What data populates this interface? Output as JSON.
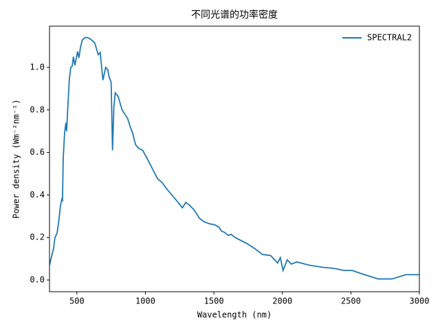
{
  "chart_data": {
    "type": "line",
    "title": "不同光谱的功率密度",
    "x_label": "Wavelength (nm)",
    "y_label": "Power density (Wm⁻²nm⁻¹)",
    "x": [
      300,
      330,
      340,
      355,
      365,
      370,
      380,
      390,
      395,
      400,
      410,
      420,
      425,
      435,
      445,
      455,
      465,
      475,
      485,
      495,
      505,
      515,
      525,
      540,
      560,
      580,
      605,
      630,
      656,
      670,
      690,
      710,
      725,
      735,
      750,
      760,
      770,
      780,
      800,
      830,
      850,
      870,
      890,
      910,
      920,
      930,
      950,
      980,
      1010,
      1050,
      1090,
      1120,
      1160,
      1200,
      1245,
      1270,
      1295,
      1325,
      1355,
      1395,
      1425,
      1445,
      1465,
      1505,
      1535,
      1555,
      1575,
      1595,
      1605,
      1625,
      1655,
      1745,
      1805,
      1855,
      1915,
      1965,
      1985,
      2005,
      2035,
      2065,
      2105,
      2195,
      2295,
      2375,
      2450,
      2510,
      2600,
      2700,
      2800,
      2900,
      3000
    ],
    "series": [
      {
        "name": "SPECTRAL2",
        "color": "#1f77b4",
        "values": [
          0.07,
          0.15,
          0.2,
          0.22,
          0.265,
          0.29,
          0.35,
          0.38,
          0.375,
          0.57,
          0.69,
          0.74,
          0.7,
          0.83,
          0.945,
          1.0,
          1.005,
          1.05,
          1.01,
          1.04,
          1.075,
          1.045,
          1.09,
          1.13,
          1.14,
          1.14,
          1.13,
          1.115,
          1.06,
          1.07,
          0.94,
          1.0,
          0.99,
          0.955,
          0.93,
          0.61,
          0.815,
          0.88,
          0.865,
          0.8,
          0.78,
          0.76,
          0.72,
          0.685,
          0.655,
          0.635,
          0.62,
          0.61,
          0.575,
          0.525,
          0.475,
          0.46,
          0.425,
          0.395,
          0.36,
          0.34,
          0.365,
          0.35,
          0.33,
          0.29,
          0.275,
          0.27,
          0.265,
          0.26,
          0.25,
          0.23,
          0.225,
          0.215,
          0.21,
          0.215,
          0.2,
          0.17,
          0.145,
          0.12,
          0.115,
          0.08,
          0.105,
          0.045,
          0.095,
          0.075,
          0.085,
          0.07,
          0.06,
          0.055,
          0.045,
          0.045,
          0.025,
          0.005,
          0.005,
          0.025,
          0.025
        ]
      }
    ],
    "xlim": [
      300,
      3000
    ],
    "xticks": [
      500,
      1000,
      1500,
      2000,
      2500,
      3000
    ],
    "ylim": [
      -0.055,
      1.194
    ],
    "yticks": [
      {
        "value": 0,
        "label": "0.0"
      },
      0.2,
      0.4,
      0.6,
      0.8,
      {
        "value": 1,
        "label": "1.0"
      }
    ],
    "legend": "upper right"
  }
}
